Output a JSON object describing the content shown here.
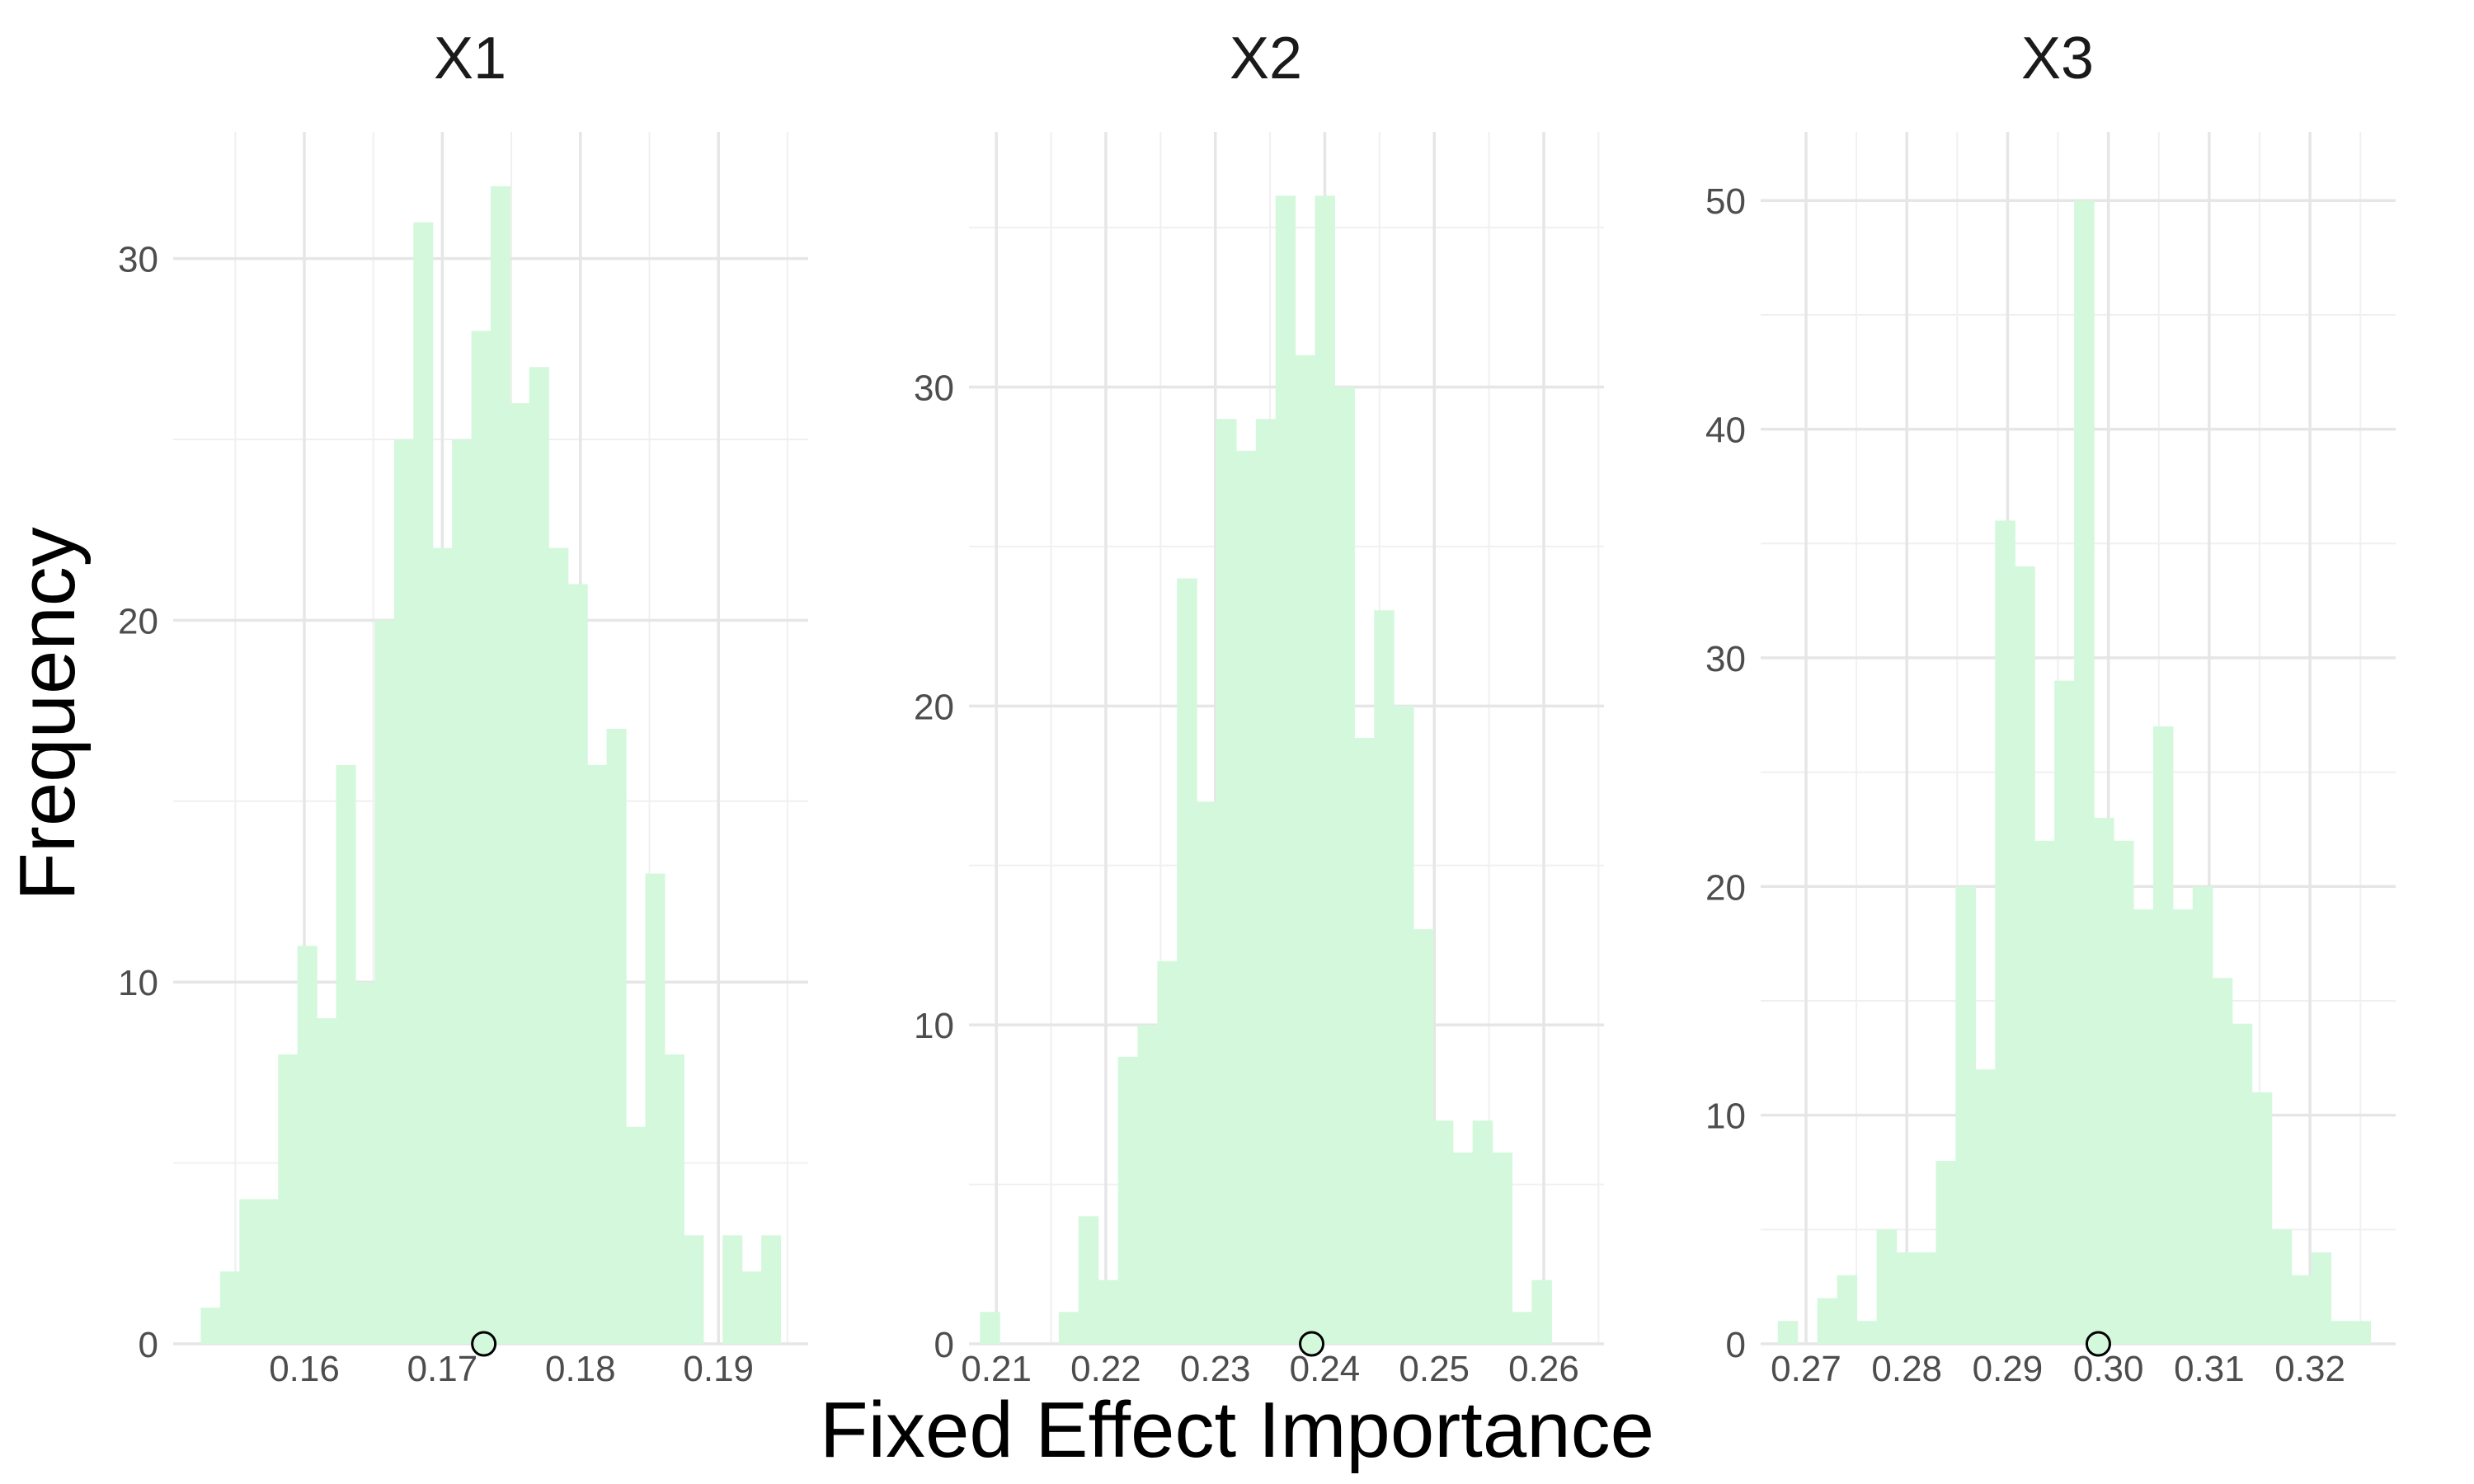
{
  "xlabel": "Fixed Effect Importance",
  "ylabel": "Frequency",
  "chart_data": [
    {
      "type": "histogram",
      "title": "X1",
      "xlim": [
        0.1505,
        0.1965
      ],
      "ylim": [
        0,
        33.5
      ],
      "x_ticks": [
        0.16,
        0.17,
        0.18,
        0.19
      ],
      "x_tick_labels": [
        "0.16",
        "0.17",
        "0.18",
        "0.19"
      ],
      "y_ticks": [
        0,
        10,
        20,
        30
      ],
      "y_tick_labels": [
        "0",
        "10",
        "20",
        "30"
      ],
      "bin_start": 0.1525,
      "bin_width": 0.0014,
      "counts": [
        1,
        2,
        4,
        4,
        8,
        11,
        9,
        16,
        10,
        20,
        25,
        31,
        22,
        25,
        28,
        32,
        26,
        27,
        22,
        21,
        16,
        17,
        6,
        13,
        8,
        3,
        0,
        3,
        2,
        3
      ],
      "point": {
        "x": 0.173,
        "y": 0
      },
      "bar_color": "#d4f8dc",
      "grid": true
    },
    {
      "type": "histogram",
      "title": "X2",
      "xlim": [
        0.2075,
        0.2655
      ],
      "ylim": [
        0,
        38
      ],
      "x_ticks": [
        0.21,
        0.22,
        0.23,
        0.24,
        0.25,
        0.26
      ],
      "x_tick_labels": [
        "0.21",
        "0.22",
        "0.23",
        "0.24",
        "0.25",
        "0.26"
      ],
      "y_ticks": [
        0,
        10,
        20,
        30
      ],
      "y_tick_labels": [
        "0",
        "10",
        "20",
        "30"
      ],
      "bin_start": 0.2085,
      "bin_width": 0.0018,
      "counts": [
        1,
        0,
        0,
        0,
        1,
        4,
        2,
        9,
        10,
        12,
        24,
        17,
        29,
        28,
        29,
        36,
        31,
        36,
        30,
        19,
        23,
        20,
        13,
        7,
        6,
        7,
        6,
        1,
        2,
        0
      ],
      "point": {
        "x": 0.2388,
        "y": 0
      },
      "bar_color": "#d4f8dc",
      "grid": true
    },
    {
      "type": "histogram",
      "title": "X3",
      "xlim": [
        0.2655,
        0.3285
      ],
      "ylim": [
        0,
        53
      ],
      "x_ticks": [
        0.27,
        0.28,
        0.29,
        0.3,
        0.31,
        0.32
      ],
      "x_tick_labels": [
        "0.27",
        "0.28",
        "0.29",
        "0.30",
        "0.31",
        "0.32"
      ],
      "y_ticks": [
        0,
        10,
        20,
        30,
        40,
        50
      ],
      "y_tick_labels": [
        "0",
        "10",
        "20",
        "30",
        "40",
        "50"
      ],
      "bin_start": 0.2672,
      "bin_width": 0.00196,
      "counts": [
        1,
        0,
        2,
        3,
        1,
        5,
        4,
        4,
        8,
        20,
        12,
        36,
        34,
        22,
        29,
        50,
        23,
        22,
        19,
        27,
        19,
        20,
        16,
        14,
        11,
        5,
        3,
        4,
        1,
        1
      ],
      "point": {
        "x": 0.299,
        "y": 0
      },
      "bar_color": "#d4f8dc",
      "grid": true
    }
  ]
}
